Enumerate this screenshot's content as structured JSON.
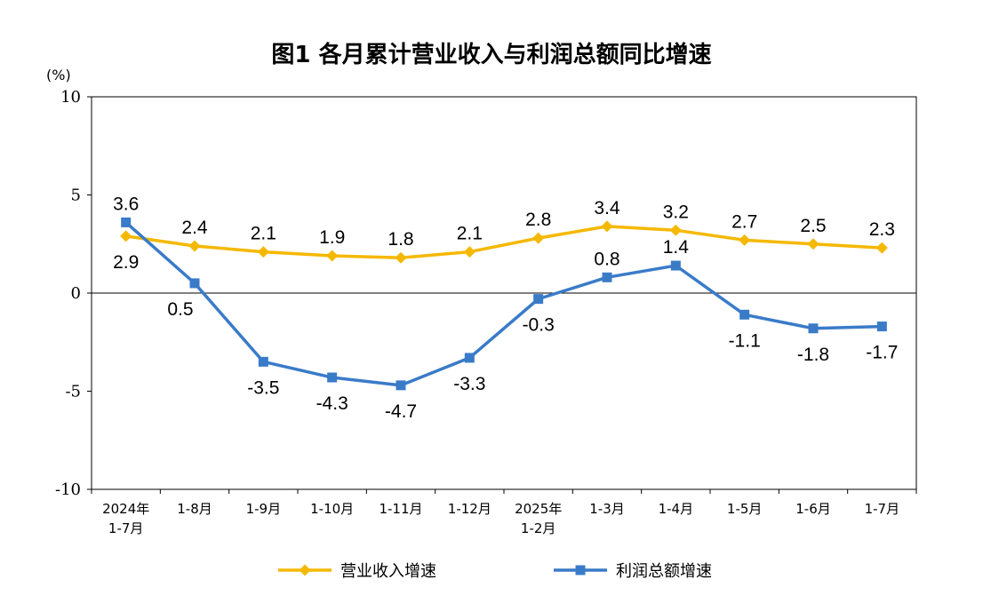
{
  "chart_data": {
    "type": "line",
    "title": "图1  各月累计营业收入与利润总额同比增速",
    "ylabel": "(%)",
    "ylim": [
      -10,
      10
    ],
    "yticks": [
      "10",
      "5",
      "0",
      "-5",
      "-10"
    ],
    "grid": false,
    "legend_position": "bottom",
    "categories": [
      [
        "2024年",
        "1-7月"
      ],
      [
        "1-8月"
      ],
      [
        "1-9月"
      ],
      [
        "1-10月"
      ],
      [
        "1-11月"
      ],
      [
        "1-12月"
      ],
      [
        "2025年",
        "1-2月"
      ],
      [
        "1-3月"
      ],
      [
        "1-4月"
      ],
      [
        "1-5月"
      ],
      [
        "1-6月"
      ],
      [
        "1-7月"
      ]
    ],
    "series": [
      {
        "name": "营业收入增速",
        "color": "#F5B800",
        "marker": "diamond",
        "values": [
          2.9,
          2.4,
          2.1,
          1.9,
          1.8,
          2.1,
          2.8,
          3.4,
          3.2,
          2.7,
          2.5,
          2.3
        ],
        "labels": [
          "2.9",
          "2.4",
          "2.1",
          "1.9",
          "1.8",
          "2.1",
          "2.8",
          "3.4",
          "3.2",
          "2.7",
          "2.5",
          "2.3"
        ]
      },
      {
        "name": "利润总额增速",
        "color": "#3A7BC8",
        "marker": "square",
        "values": [
          3.6,
          0.5,
          -3.5,
          -4.3,
          -4.7,
          -3.3,
          -0.3,
          0.8,
          1.4,
          -1.1,
          -1.8,
          -1.7
        ],
        "labels": [
          "3.6",
          "0.5",
          "-3.5",
          "-4.3",
          "-4.7",
          "-3.3",
          "-0.3",
          "0.8",
          "1.4",
          "-1.1",
          "-1.8",
          "-1.7"
        ]
      }
    ]
  }
}
